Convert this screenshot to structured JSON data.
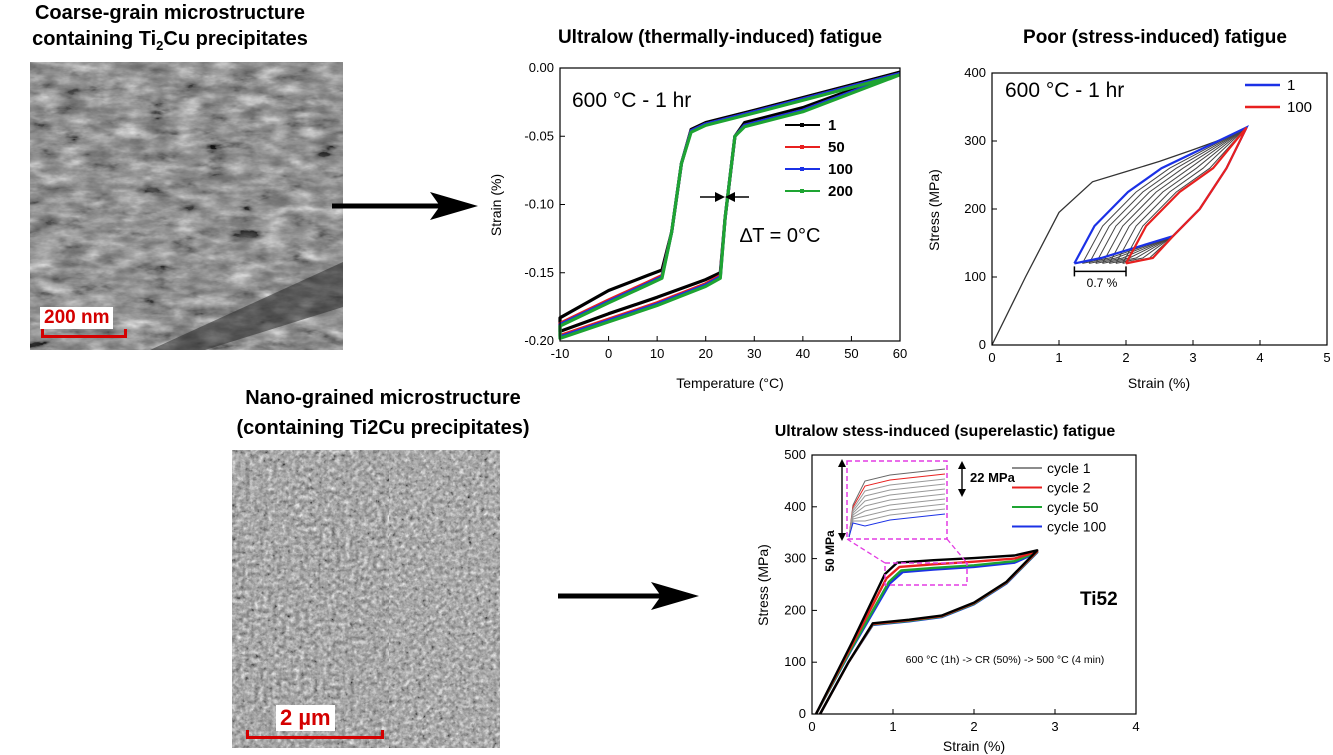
{
  "headings": {
    "coarse_line1": "Coarse-grain microstructure",
    "coarse_line2_pre": "containing Ti",
    "coarse_line2_sub": "2",
    "coarse_line2_post": "Cu precipitates",
    "nano_line1": "Nano-grained microstructure",
    "nano_line2": "(containing Ti2Cu precipitates)"
  },
  "scalebars": {
    "coarse": "200 nm",
    "nano": "2 µm"
  },
  "colors": {
    "black": "#000000",
    "red": "#e8201f",
    "blue": "#1b31e6",
    "green": "#1ea432",
    "gray": "#8c8c8c",
    "magenta": "#e33be3",
    "scale_red": "#d40000"
  },
  "chart_data": [
    {
      "type": "line",
      "title": "Ultralow (thermally-induced) fatigue",
      "annotation": "600 °C - 1 hr",
      "delta_label": "∆T = 0°C",
      "xlabel": "Temperature (°C)",
      "ylabel": "Strain (%)",
      "xlim": [
        -10,
        60
      ],
      "ylim": [
        -0.2,
        0.0
      ],
      "xticks": [
        -10,
        0,
        10,
        20,
        30,
        40,
        50,
        60
      ],
      "yticks": [
        0.0,
        -0.05,
        -0.1,
        -0.15,
        -0.2
      ],
      "ytick_labels": [
        "0.00",
        "-0.05",
        "-0.10",
        "-0.15",
        "-0.20"
      ],
      "legend": {
        "position": "right",
        "entries": [
          "1",
          "50",
          "100",
          "200"
        ]
      },
      "series": [
        {
          "name": "1",
          "color": "#000000",
          "cooling": [
            [
              60,
              -0.003
            ],
            [
              30,
              -0.031
            ],
            [
              20,
              -0.04
            ],
            [
              17,
              -0.045
            ],
            [
              15,
              -0.07
            ],
            [
              13,
              -0.12
            ],
            [
              11,
              -0.148
            ],
            [
              8,
              -0.152
            ],
            [
              0,
              -0.163
            ],
            [
              -10,
              -0.183
            ]
          ],
          "heating": [
            [
              -10,
              -0.193
            ],
            [
              0,
              -0.18
            ],
            [
              10,
              -0.168
            ],
            [
              20,
              -0.155
            ],
            [
              23,
              -0.15
            ],
            [
              24,
              -0.11
            ],
            [
              26,
              -0.05
            ],
            [
              28,
              -0.04
            ],
            [
              40,
              -0.029
            ],
            [
              60,
              -0.003
            ]
          ]
        },
        {
          "name": "50",
          "color": "#e8201f",
          "cooling": [
            [
              60,
              -0.004
            ],
            [
              30,
              -0.032
            ],
            [
              20,
              -0.041
            ],
            [
              17,
              -0.046
            ],
            [
              15,
              -0.07
            ],
            [
              13,
              -0.12
            ],
            [
              11,
              -0.152
            ],
            [
              8,
              -0.157
            ],
            [
              0,
              -0.17
            ],
            [
              -10,
              -0.187
            ]
          ],
          "heating": [
            [
              -10,
              -0.196
            ],
            [
              0,
              -0.184
            ],
            [
              10,
              -0.172
            ],
            [
              20,
              -0.158
            ],
            [
              23,
              -0.152
            ],
            [
              24,
              -0.11
            ],
            [
              26,
              -0.05
            ],
            [
              28,
              -0.042
            ],
            [
              40,
              -0.031
            ],
            [
              60,
              -0.004
            ]
          ]
        },
        {
          "name": "100",
          "color": "#1b31e6",
          "cooling": [
            [
              60,
              -0.004
            ],
            [
              30,
              -0.032
            ],
            [
              20,
              -0.041
            ],
            [
              17,
              -0.046
            ],
            [
              15,
              -0.07
            ],
            [
              13,
              -0.12
            ],
            [
              11,
              -0.153
            ],
            [
              8,
              -0.158
            ],
            [
              0,
              -0.171
            ],
            [
              -10,
              -0.188
            ]
          ],
          "heating": [
            [
              -10,
              -0.197
            ],
            [
              0,
              -0.185
            ],
            [
              10,
              -0.173
            ],
            [
              20,
              -0.159
            ],
            [
              23,
              -0.153
            ],
            [
              24,
              -0.11
            ],
            [
              26,
              -0.05
            ],
            [
              28,
              -0.042
            ],
            [
              40,
              -0.031
            ],
            [
              60,
              -0.004
            ]
          ]
        },
        {
          "name": "200",
          "color": "#1ea432",
          "cooling": [
            [
              60,
              -0.005
            ],
            [
              30,
              -0.033
            ],
            [
              20,
              -0.042
            ],
            [
              17,
              -0.047
            ],
            [
              15,
              -0.07
            ],
            [
              13,
              -0.12
            ],
            [
              11,
              -0.154
            ],
            [
              8,
              -0.159
            ],
            [
              0,
              -0.172
            ],
            [
              -10,
              -0.189
            ]
          ],
          "heating": [
            [
              -10,
              -0.198
            ],
            [
              0,
              -0.186
            ],
            [
              10,
              -0.174
            ],
            [
              20,
              -0.16
            ],
            [
              23,
              -0.154
            ],
            [
              24,
              -0.11
            ],
            [
              26,
              -0.05
            ],
            [
              28,
              -0.043
            ],
            [
              40,
              -0.032
            ],
            [
              60,
              -0.005
            ]
          ]
        }
      ]
    },
    {
      "type": "line",
      "title": "Poor (stress-induced) fatigue",
      "annotation": "600 °C - 1 hr",
      "bracket_label": "0.7 %",
      "xlabel": "Strain (%)",
      "ylabel": "Stress (MPa)",
      "xlim": [
        0,
        5
      ],
      "ylim": [
        0,
        400
      ],
      "xticks": [
        0,
        1,
        2,
        3,
        4,
        5
      ],
      "yticks": [
        0,
        100,
        200,
        300,
        400
      ],
      "legend": {
        "position": "top-right",
        "entries": [
          "1",
          "100"
        ]
      },
      "loading_curve": [
        [
          0,
          0
        ],
        [
          0.5,
          100
        ],
        [
          1.0,
          195
        ],
        [
          1.5,
          240
        ],
        [
          2.0,
          255
        ],
        [
          2.5,
          270
        ],
        [
          3.0,
          287
        ],
        [
          3.5,
          305
        ],
        [
          3.8,
          320
        ]
      ],
      "loop_min_strain": [
        1.23,
        1.35,
        1.45,
        1.55,
        1.65,
        1.75,
        1.85,
        1.95,
        2.0
      ],
      "series": [
        {
          "name": "1",
          "color": "#1b31e6",
          "min_strain": 1.23
        },
        {
          "name": "100",
          "color": "#e8201f",
          "min_strain": 2.0
        }
      ]
    },
    {
      "type": "line",
      "title": "Ultralow stess-induced (superelastic) fatigue",
      "alloy_label": "Ti52",
      "process_label": "600 °C (1h) -> CR (50%) -> 500 °C (4 min)",
      "inset_label_left": "50 MPa",
      "inset_label_right": "22 MPa",
      "xlabel": "Strain (%)",
      "ylabel": "Stress (MPa)",
      "xlim": [
        0,
        4
      ],
      "ylim": [
        0,
        500
      ],
      "xticks": [
        0,
        1,
        2,
        3,
        4
      ],
      "yticks": [
        0,
        100,
        200,
        300,
        400,
        500
      ],
      "legend": {
        "position": "top-right",
        "entries": [
          "cycle 1",
          "cycle 2",
          "cycle 50",
          "cycle 100"
        ]
      },
      "series": [
        {
          "name": "cycle 1",
          "color": "#8c8c8c",
          "line": "#000000",
          "loading": [
            [
              0.05,
              0
            ],
            [
              0.5,
              140
            ],
            [
              0.9,
              270
            ],
            [
              1.05,
              292
            ],
            [
              1.5,
              297
            ],
            [
              2.0,
              301
            ],
            [
              2.5,
              306
            ],
            [
              2.78,
              316
            ]
          ],
          "unloading": [
            [
              2.78,
              316
            ],
            [
              2.4,
              255
            ],
            [
              2.0,
              215
            ],
            [
              1.6,
              190
            ],
            [
              1.2,
              182
            ],
            [
              0.75,
              175
            ],
            [
              0.45,
              100
            ],
            [
              0.1,
              0
            ]
          ]
        },
        {
          "name": "cycle 2",
          "color": "#e8201f",
          "line": "#e8201f",
          "loading": [
            [
              0.05,
              0
            ],
            [
              0.5,
              135
            ],
            [
              0.92,
              262
            ],
            [
              1.08,
              284
            ],
            [
              1.5,
              289
            ],
            [
              2.0,
              294
            ],
            [
              2.5,
              300
            ],
            [
              2.78,
              314
            ]
          ],
          "unloading": [
            [
              2.78,
              314
            ],
            [
              2.4,
              254
            ],
            [
              2.0,
              214
            ],
            [
              1.6,
              189
            ],
            [
              1.2,
              181
            ],
            [
              0.75,
              174
            ],
            [
              0.45,
              100
            ],
            [
              0.1,
              0
            ]
          ]
        },
        {
          "name": "cycle 50",
          "color": "#1ea432",
          "line": "#1ea432",
          "loading": [
            [
              0.05,
              0
            ],
            [
              0.5,
              130
            ],
            [
              0.95,
              255
            ],
            [
              1.1,
              277
            ],
            [
              1.5,
              282
            ],
            [
              2.0,
              287
            ],
            [
              2.5,
              295
            ],
            [
              2.78,
              313
            ]
          ],
          "unloading": [
            [
              2.78,
              313
            ],
            [
              2.4,
              253
            ],
            [
              2.0,
              213
            ],
            [
              1.6,
              188
            ],
            [
              1.2,
              180
            ],
            [
              0.75,
              173
            ],
            [
              0.45,
              100
            ],
            [
              0.1,
              0
            ]
          ]
        },
        {
          "name": "cycle 100",
          "color": "#1b31e6",
          "line": "#1b31e6",
          "loading": [
            [
              0.05,
              0
            ],
            [
              0.5,
              128
            ],
            [
              0.96,
              252
            ],
            [
              1.12,
              274
            ],
            [
              1.5,
              279
            ],
            [
              2.0,
              284
            ],
            [
              2.5,
              292
            ],
            [
              2.78,
              312
            ]
          ],
          "unloading": [
            [
              2.78,
              312
            ],
            [
              2.4,
              252
            ],
            [
              2.0,
              212
            ],
            [
              1.6,
              187
            ],
            [
              1.2,
              179
            ],
            [
              0.75,
              172
            ],
            [
              0.45,
              100
            ],
            [
              0.1,
              0
            ]
          ]
        }
      ]
    }
  ]
}
